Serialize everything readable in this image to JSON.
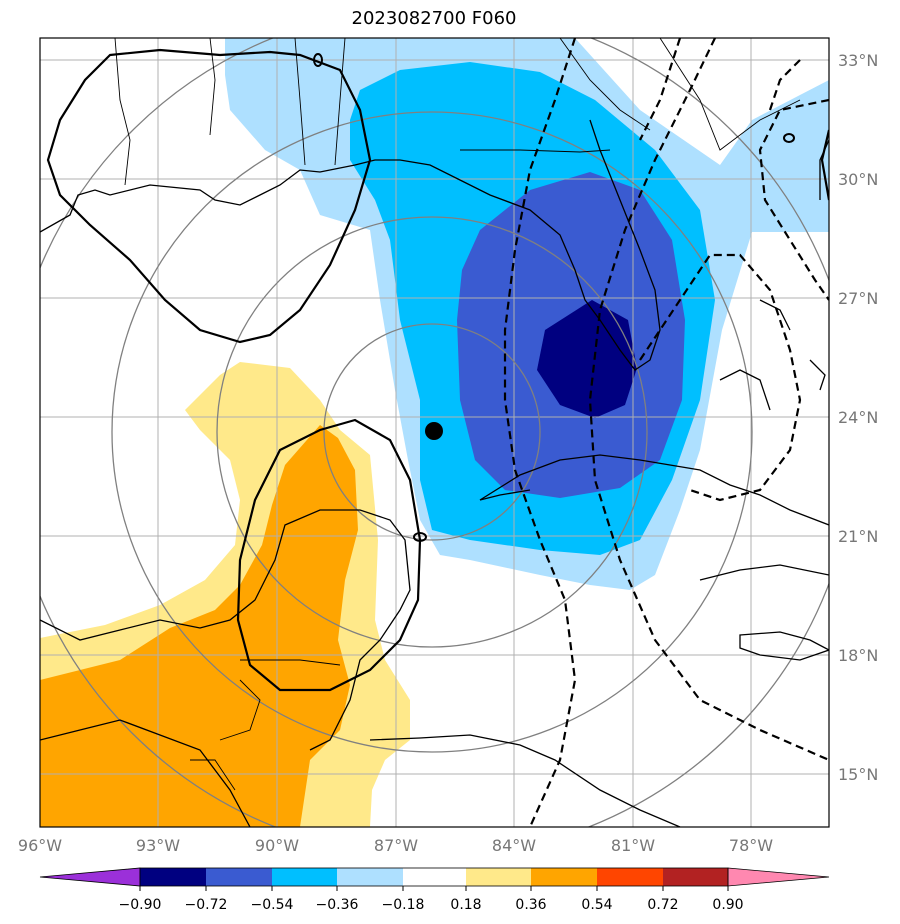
{
  "title": "2023082700 F060",
  "map": {
    "lon_labels": [
      "96°W",
      "93°W",
      "90°W",
      "87°W",
      "84°W",
      "81°W",
      "78°W"
    ],
    "lat_labels": [
      "33°N",
      "30°N",
      "27°N",
      "24°N",
      "21°N",
      "18°N",
      "15°N"
    ],
    "center_marker": "storm-center",
    "colors": {
      "neg090": "#000080",
      "neg072": "#3a5bd1",
      "neg054": "#00bfff",
      "neg036": "#aee0ff",
      "pos018": "#ffe98a",
      "pos036": "#ffa500"
    }
  },
  "colorbar": {
    "tick_labels": [
      "−0.90",
      "−0.72",
      "−0.54",
      "−0.36",
      "−0.18",
      "0.18",
      "0.36",
      "0.54",
      "0.72",
      "0.90"
    ],
    "colors": [
      "#9b30d9",
      "#000080",
      "#3a5bd1",
      "#00bfff",
      "#aee0ff",
      "#ffffff",
      "#ffe98a",
      "#ffa500",
      "#ff4500",
      "#b22222",
      "#ff88b0"
    ]
  }
}
